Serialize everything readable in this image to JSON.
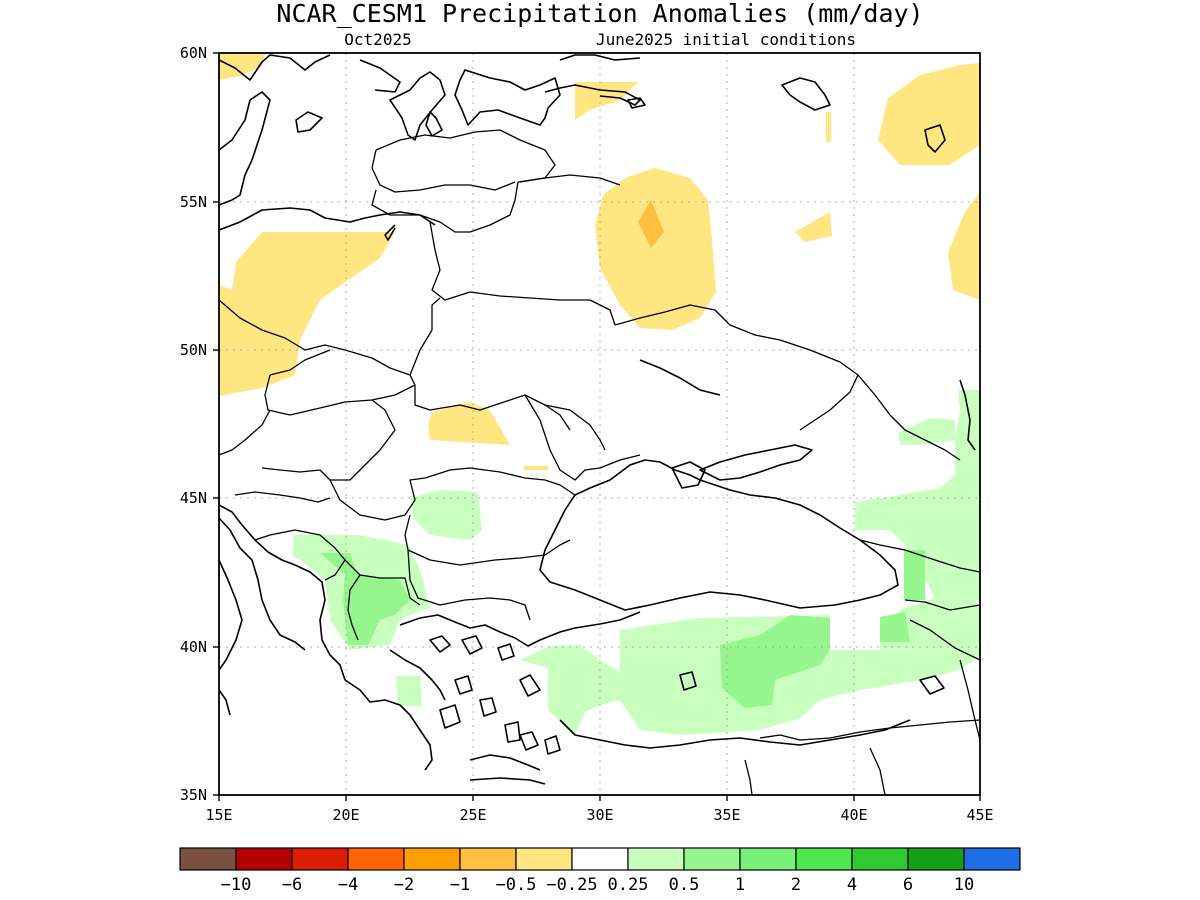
{
  "title": "NCAR_CESM1 Precipitation Anomalies (mm/day)",
  "subtitle_left": "Oct2025",
  "subtitle_right": "June2025 initial conditions",
  "axes": {
    "lon_labels": [
      "15E",
      "20E",
      "25E",
      "30E",
      "35E",
      "40E",
      "45E"
    ],
    "lat_labels": [
      "35N",
      "40N",
      "45N",
      "50N",
      "55N",
      "60N"
    ],
    "lon_range": [
      15,
      45
    ],
    "lat_range": [
      35,
      60
    ],
    "grid": true
  },
  "colorbar": {
    "colors": [
      "#7a5040",
      "#b40000",
      "#dc1e00",
      "#ff6400",
      "#ffa000",
      "#ffc040",
      "#ffe680",
      "#ffffff",
      "#c8ffbe",
      "#96f58c",
      "#78f078",
      "#50e650",
      "#32c832",
      "#14a014",
      "#1e6ee6"
    ],
    "labels": [
      "-10",
      "-6",
      "-4",
      "-2",
      "-1",
      "-0.5",
      "-0.25",
      "0.25",
      "0.5",
      "1",
      "2",
      "4",
      "6",
      "10"
    ]
  },
  "anomaly_regions": [
    {
      "level": "-0.5 to -0.25",
      "color": "#ffe680",
      "area": "southern Baltic / Poland"
    },
    {
      "level": "-0.5 to -0.25",
      "color": "#ffe680",
      "area": "Belarus-Russia-Ukraine border"
    },
    {
      "level": "-1 to -0.5",
      "color": "#ffc040",
      "area": "near 32E 54N"
    },
    {
      "level": "-0.5 to -0.25",
      "color": "#ffe680",
      "area": "western Russia near 42E 57N"
    },
    {
      "level": "0.25 to 0.5",
      "color": "#c8ffbe",
      "area": "Balkans, Turkey, Caucasus"
    },
    {
      "level": "0.5 to 1",
      "color": "#96f58c",
      "area": "Albania / North Macedonia, central Anatolia"
    }
  ]
}
